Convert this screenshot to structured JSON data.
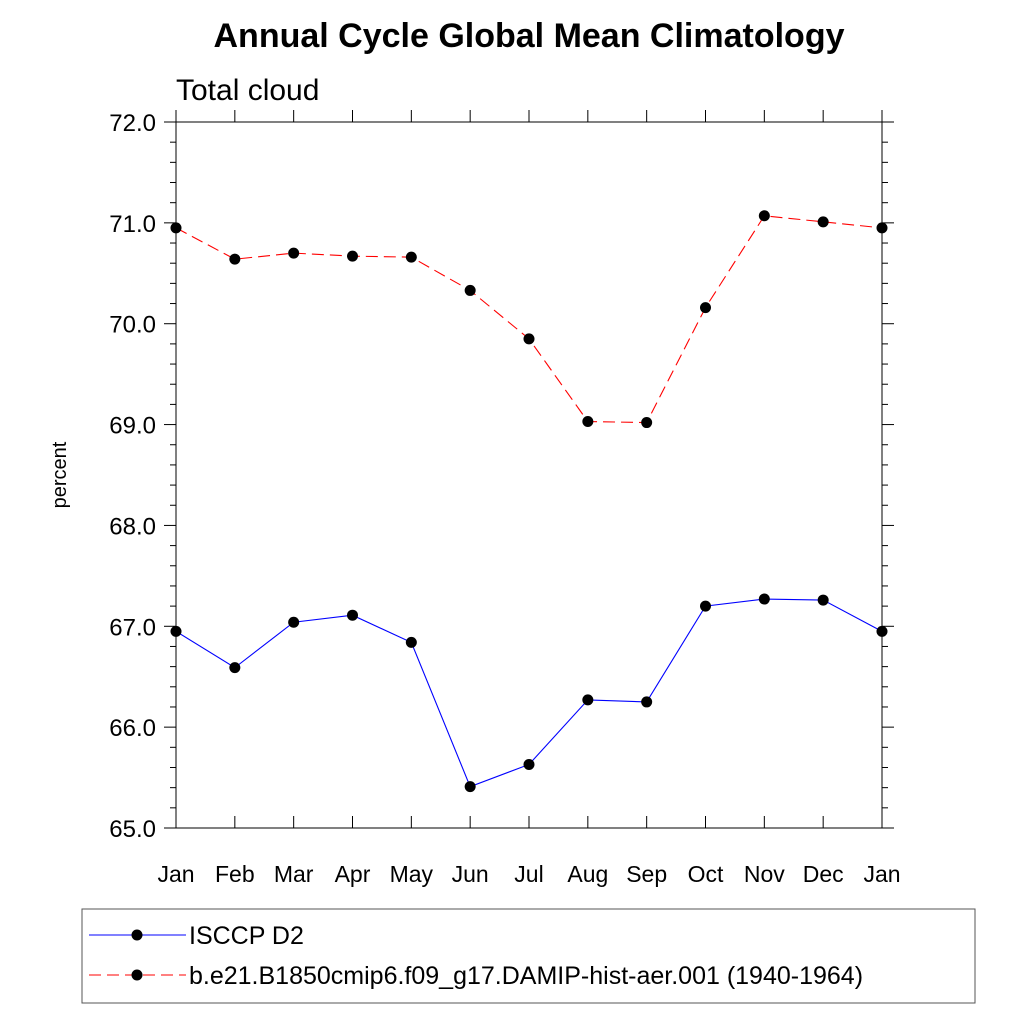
{
  "chart_data": {
    "type": "line",
    "title": "Annual Cycle Global Mean Climatology",
    "subtitle": "Total cloud",
    "xlabel": "",
    "ylabel": "percent",
    "categories": [
      "Jan",
      "Feb",
      "Mar",
      "Apr",
      "May",
      "Jun",
      "Jul",
      "Aug",
      "Sep",
      "Oct",
      "Nov",
      "Dec",
      "Jan"
    ],
    "ylim": [
      65.0,
      72.0
    ],
    "yticks": [
      "65.0",
      "66.0",
      "67.0",
      "68.0",
      "69.0",
      "70.0",
      "71.0",
      "72.0"
    ],
    "grid": false,
    "legend_placement": "bottom",
    "series": [
      {
        "name": "ISCCP D2",
        "color": "#0000ff",
        "line_style": "solid",
        "marker": "filled-circle",
        "values": [
          66.95,
          66.59,
          67.04,
          67.11,
          66.84,
          65.41,
          65.63,
          66.27,
          66.25,
          67.2,
          67.27,
          67.26,
          66.95
        ]
      },
      {
        "name": "b.e21.B1850cmip6.f09_g17.DAMIP-hist-aer.001 (1940-1964)",
        "color": "#ff0000",
        "line_style": "dashed",
        "marker": "filled-circle",
        "values": [
          70.95,
          70.64,
          70.7,
          70.67,
          70.66,
          70.33,
          69.85,
          69.03,
          69.02,
          70.16,
          71.07,
          71.01,
          70.95
        ]
      }
    ]
  }
}
